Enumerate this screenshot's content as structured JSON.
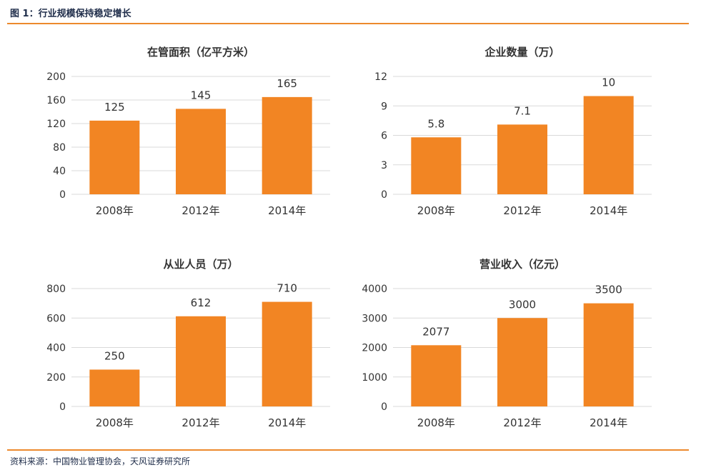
{
  "figure": {
    "title": "图 1：行业规模保持稳定增长",
    "source": "资料来源：中国物业管理协会，天风证券研究所"
  },
  "colors": {
    "bar": "#f28523",
    "rule": "#ec8a2d",
    "grid": "#d9d9d9",
    "text": "#333333"
  },
  "chart_data": [
    {
      "type": "bar",
      "title": "在管面积（亿平方米）",
      "categories": [
        "2008年",
        "2012年",
        "2014年"
      ],
      "values": [
        125,
        145,
        165
      ],
      "value_labels": [
        "125",
        "145",
        "165"
      ],
      "ylim": [
        0,
        200
      ],
      "yticks": [
        0,
        40,
        80,
        120,
        160,
        200
      ],
      "grid": true,
      "legend": "none"
    },
    {
      "type": "bar",
      "title": "企业数量（万）",
      "categories": [
        "2008年",
        "2012年",
        "2014年"
      ],
      "values": [
        5.8,
        7.1,
        10
      ],
      "value_labels": [
        "5.8",
        "7.1",
        "10"
      ],
      "ylim": [
        0,
        12
      ],
      "yticks": [
        0,
        3,
        6,
        9,
        12
      ],
      "grid": true,
      "legend": "none"
    },
    {
      "type": "bar",
      "title": "从业人员（万）",
      "categories": [
        "2008年",
        "2012年",
        "2014年"
      ],
      "values": [
        250,
        612,
        710
      ],
      "value_labels": [
        "250",
        "612",
        "710"
      ],
      "ylim": [
        0,
        800
      ],
      "yticks": [
        0,
        200,
        400,
        600,
        800
      ],
      "grid": true,
      "legend": "none"
    },
    {
      "type": "bar",
      "title": "营业收入（亿元）",
      "categories": [
        "2008年",
        "2012年",
        "2014年"
      ],
      "values": [
        2077,
        3000,
        3500
      ],
      "value_labels": [
        "2077",
        "3000",
        "3500"
      ],
      "ylim": [
        0,
        4000
      ],
      "yticks": [
        0,
        1000,
        2000,
        3000,
        4000
      ],
      "grid": true,
      "legend": "none"
    }
  ]
}
